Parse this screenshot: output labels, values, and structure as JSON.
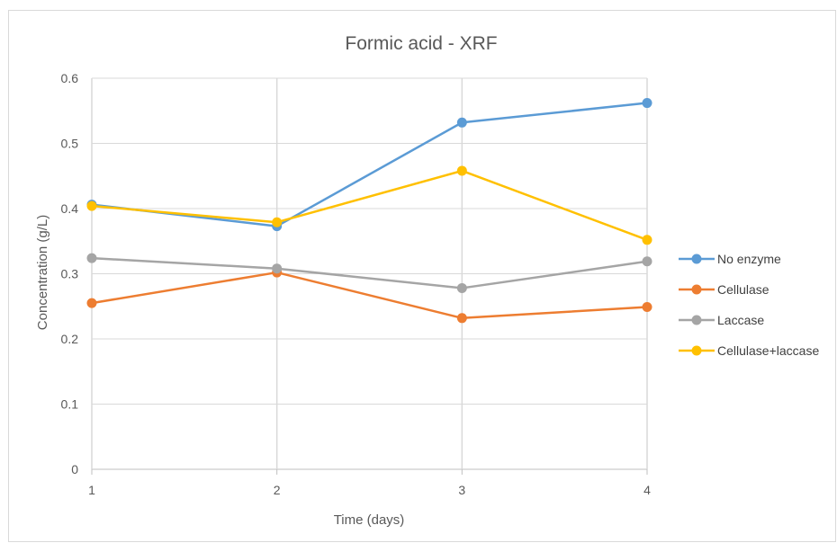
{
  "chart_data": {
    "type": "line",
    "title": "Formic acid - XRF",
    "xlabel": "Time (days)",
    "ylabel": "Concentration (g/L)",
    "x": [
      1,
      2,
      3,
      4
    ],
    "x_tick_labels": [
      "1",
      "2",
      "3",
      "4"
    ],
    "ylim": [
      0,
      0.6
    ],
    "y_tick_labels": [
      "0",
      "0.1",
      "0.2",
      "0.3",
      "0.4",
      "0.5",
      "0.6"
    ],
    "y_ticks": [
      0,
      0.1,
      0.2,
      0.3,
      0.4,
      0.5,
      0.6
    ],
    "grid": true,
    "legend_position": "right",
    "series": [
      {
        "name": "No enzyme",
        "color": "#5b9bd5",
        "values": [
          0.406,
          0.373,
          0.532,
          0.562
        ]
      },
      {
        "name": "Cellulase",
        "color": "#ed7d31",
        "values": [
          0.255,
          0.302,
          0.232,
          0.249
        ]
      },
      {
        "name": "Laccase",
        "color": "#a5a5a5",
        "values": [
          0.324,
          0.308,
          0.278,
          0.319
        ]
      },
      {
        "name": "Cellulase+laccase",
        "color": "#ffc000",
        "values": [
          0.404,
          0.379,
          0.458,
          0.352
        ]
      }
    ]
  }
}
